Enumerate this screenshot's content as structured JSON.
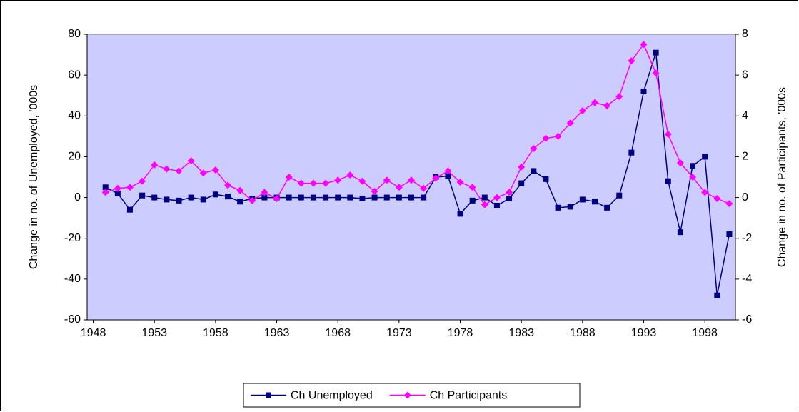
{
  "chart_data": {
    "type": "line",
    "x": [
      1949,
      1950,
      1951,
      1952,
      1953,
      1954,
      1955,
      1956,
      1957,
      1958,
      1959,
      1960,
      1961,
      1962,
      1963,
      1964,
      1965,
      1966,
      1967,
      1968,
      1969,
      1970,
      1971,
      1972,
      1973,
      1974,
      1975,
      1976,
      1977,
      1978,
      1979,
      1980,
      1981,
      1982,
      1983,
      1984,
      1985,
      1986,
      1987,
      1988,
      1989,
      1990,
      1991,
      1992,
      1993,
      1994,
      1995,
      1996,
      1997,
      1998,
      1999,
      2000
    ],
    "xlim": [
      1947.5,
      2000.5
    ],
    "xticks": [
      1948,
      1953,
      1958,
      1963,
      1968,
      1973,
      1978,
      1983,
      1988,
      1993,
      1998
    ],
    "ylabel": "Change in no. of Unemployed, '000s",
    "y2label": "Change in no. of Participants, '000s",
    "ylim": [
      -60,
      80
    ],
    "yticks": [
      -60,
      -40,
      -20,
      0,
      20,
      40,
      60,
      80
    ],
    "y2lim": [
      -6,
      8
    ],
    "y2ticks": [
      -6,
      -4,
      -2,
      0,
      2,
      4,
      6,
      8
    ],
    "plot_background": "#ccccff",
    "series": [
      {
        "name": "Ch Unemployed",
        "color": "#000080",
        "marker": "square",
        "values": [
          5,
          2,
          -6,
          1,
          0,
          -1,
          -1.5,
          0,
          -1,
          1.5,
          0.5,
          -2,
          -0.5,
          0,
          0,
          0,
          0,
          0,
          0,
          0,
          0,
          -0.5,
          0,
          0,
          0,
          0,
          0,
          10,
          10.5,
          -8,
          -1.5,
          0,
          -4,
          -0.5,
          7,
          13,
          9,
          -5,
          -4.5,
          -1,
          -2,
          -5,
          1,
          22,
          52,
          71,
          8,
          -17,
          15.5,
          20,
          -48,
          -18
        ]
      },
      {
        "name": "Ch Participants",
        "color": "#ff00ff",
        "marker": "diamond",
        "axis": "y2",
        "values": [
          0.25,
          0.45,
          0.5,
          0.8,
          1.6,
          1.4,
          1.3,
          1.8,
          1.2,
          1.35,
          0.6,
          0.35,
          -0.15,
          0.25,
          -0.05,
          1.0,
          0.7,
          0.7,
          0.7,
          0.85,
          1.1,
          0.8,
          0.3,
          0.85,
          0.5,
          0.85,
          0.45,
          0.95,
          1.3,
          0.75,
          0.5,
          -0.35,
          0,
          0.25,
          1.5,
          2.4,
          2.9,
          3.0,
          3.65,
          4.25,
          4.65,
          4.5,
          4.95,
          6.7,
          7.5,
          6.1,
          3.1,
          1.7,
          1.0,
          0.25,
          -0.05,
          -0.3
        ]
      }
    ]
  }
}
